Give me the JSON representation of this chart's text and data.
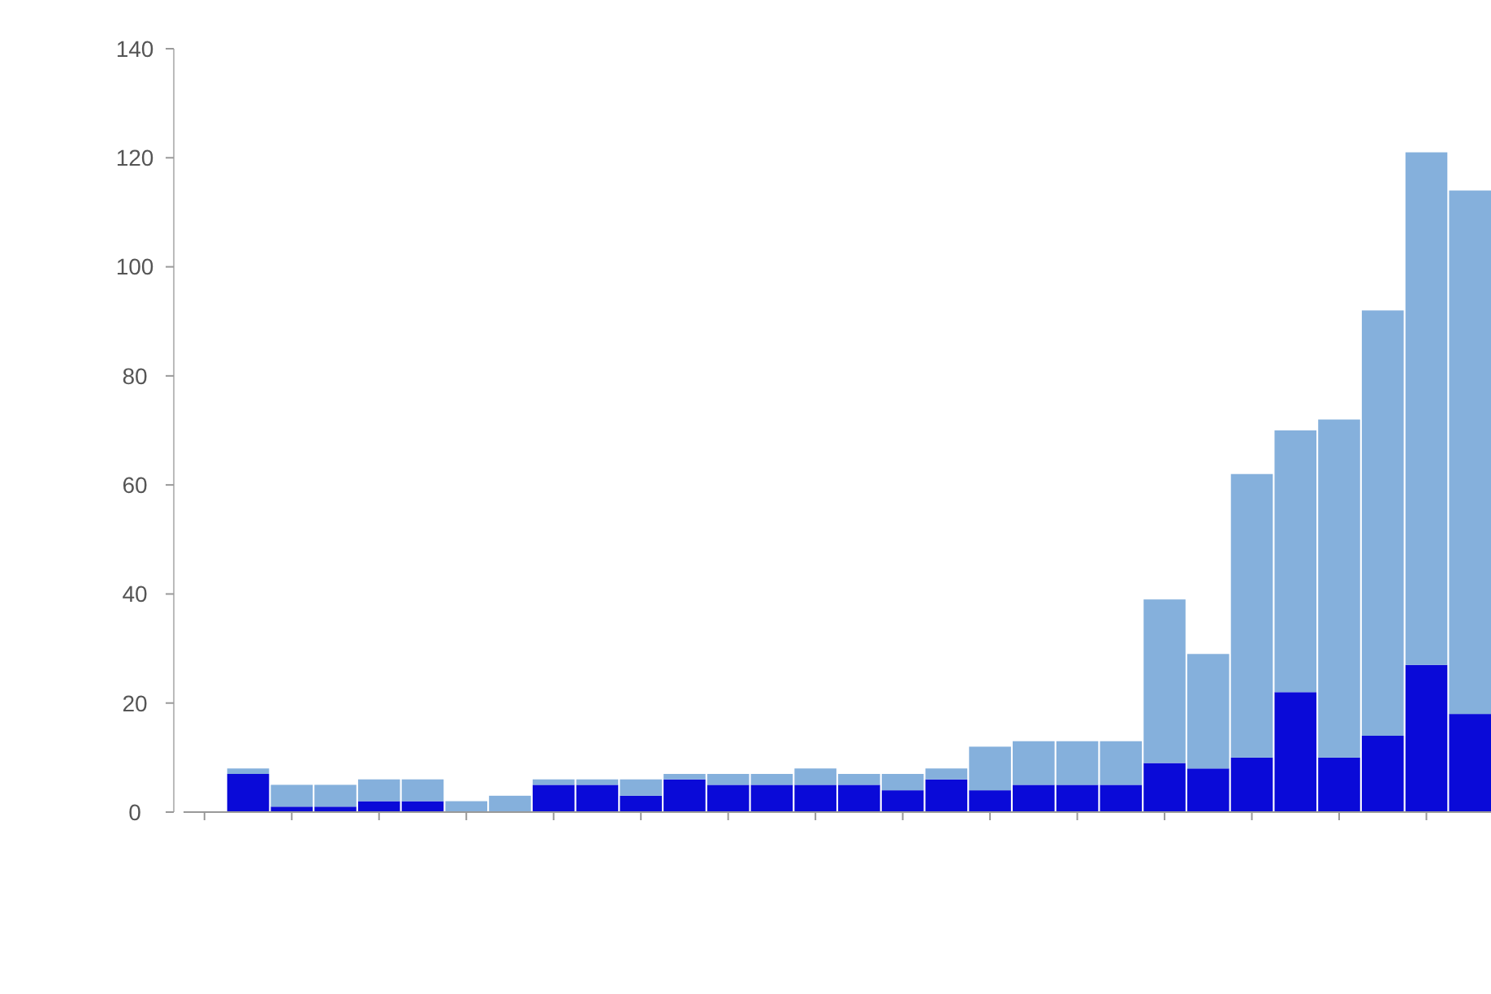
{
  "chart_data": {
    "type": "bar",
    "stacked": true,
    "categories": [
      null,
      null,
      null,
      null,
      null,
      null,
      null,
      null,
      null,
      null,
      null,
      null,
      null,
      null,
      null,
      null,
      null,
      null,
      null,
      null,
      null,
      null,
      null,
      null,
      null,
      null,
      null,
      null,
      null,
      null
    ],
    "series": [
      {
        "color": "#0a0ad8",
        "values": [
          0,
          7,
          1,
          1,
          2,
          2,
          0,
          0,
          5,
          5,
          3,
          6,
          5,
          5,
          5,
          5,
          4,
          6,
          4,
          5,
          5,
          5,
          9,
          8,
          10,
          22,
          10,
          14,
          27,
          18
        ]
      },
      {
        "color": "#85b0dc",
        "values": [
          0,
          1,
          4,
          4,
          4,
          4,
          2,
          3,
          1,
          1,
          3,
          1,
          2,
          2,
          3,
          2,
          3,
          2,
          8,
          8,
          8,
          8,
          30,
          21,
          52,
          48,
          62,
          78,
          94,
          96
        ]
      }
    ],
    "ylim": [
      0,
      140
    ],
    "yticks": [
      0,
      20,
      40,
      60,
      80,
      100,
      120,
      140
    ]
  }
}
